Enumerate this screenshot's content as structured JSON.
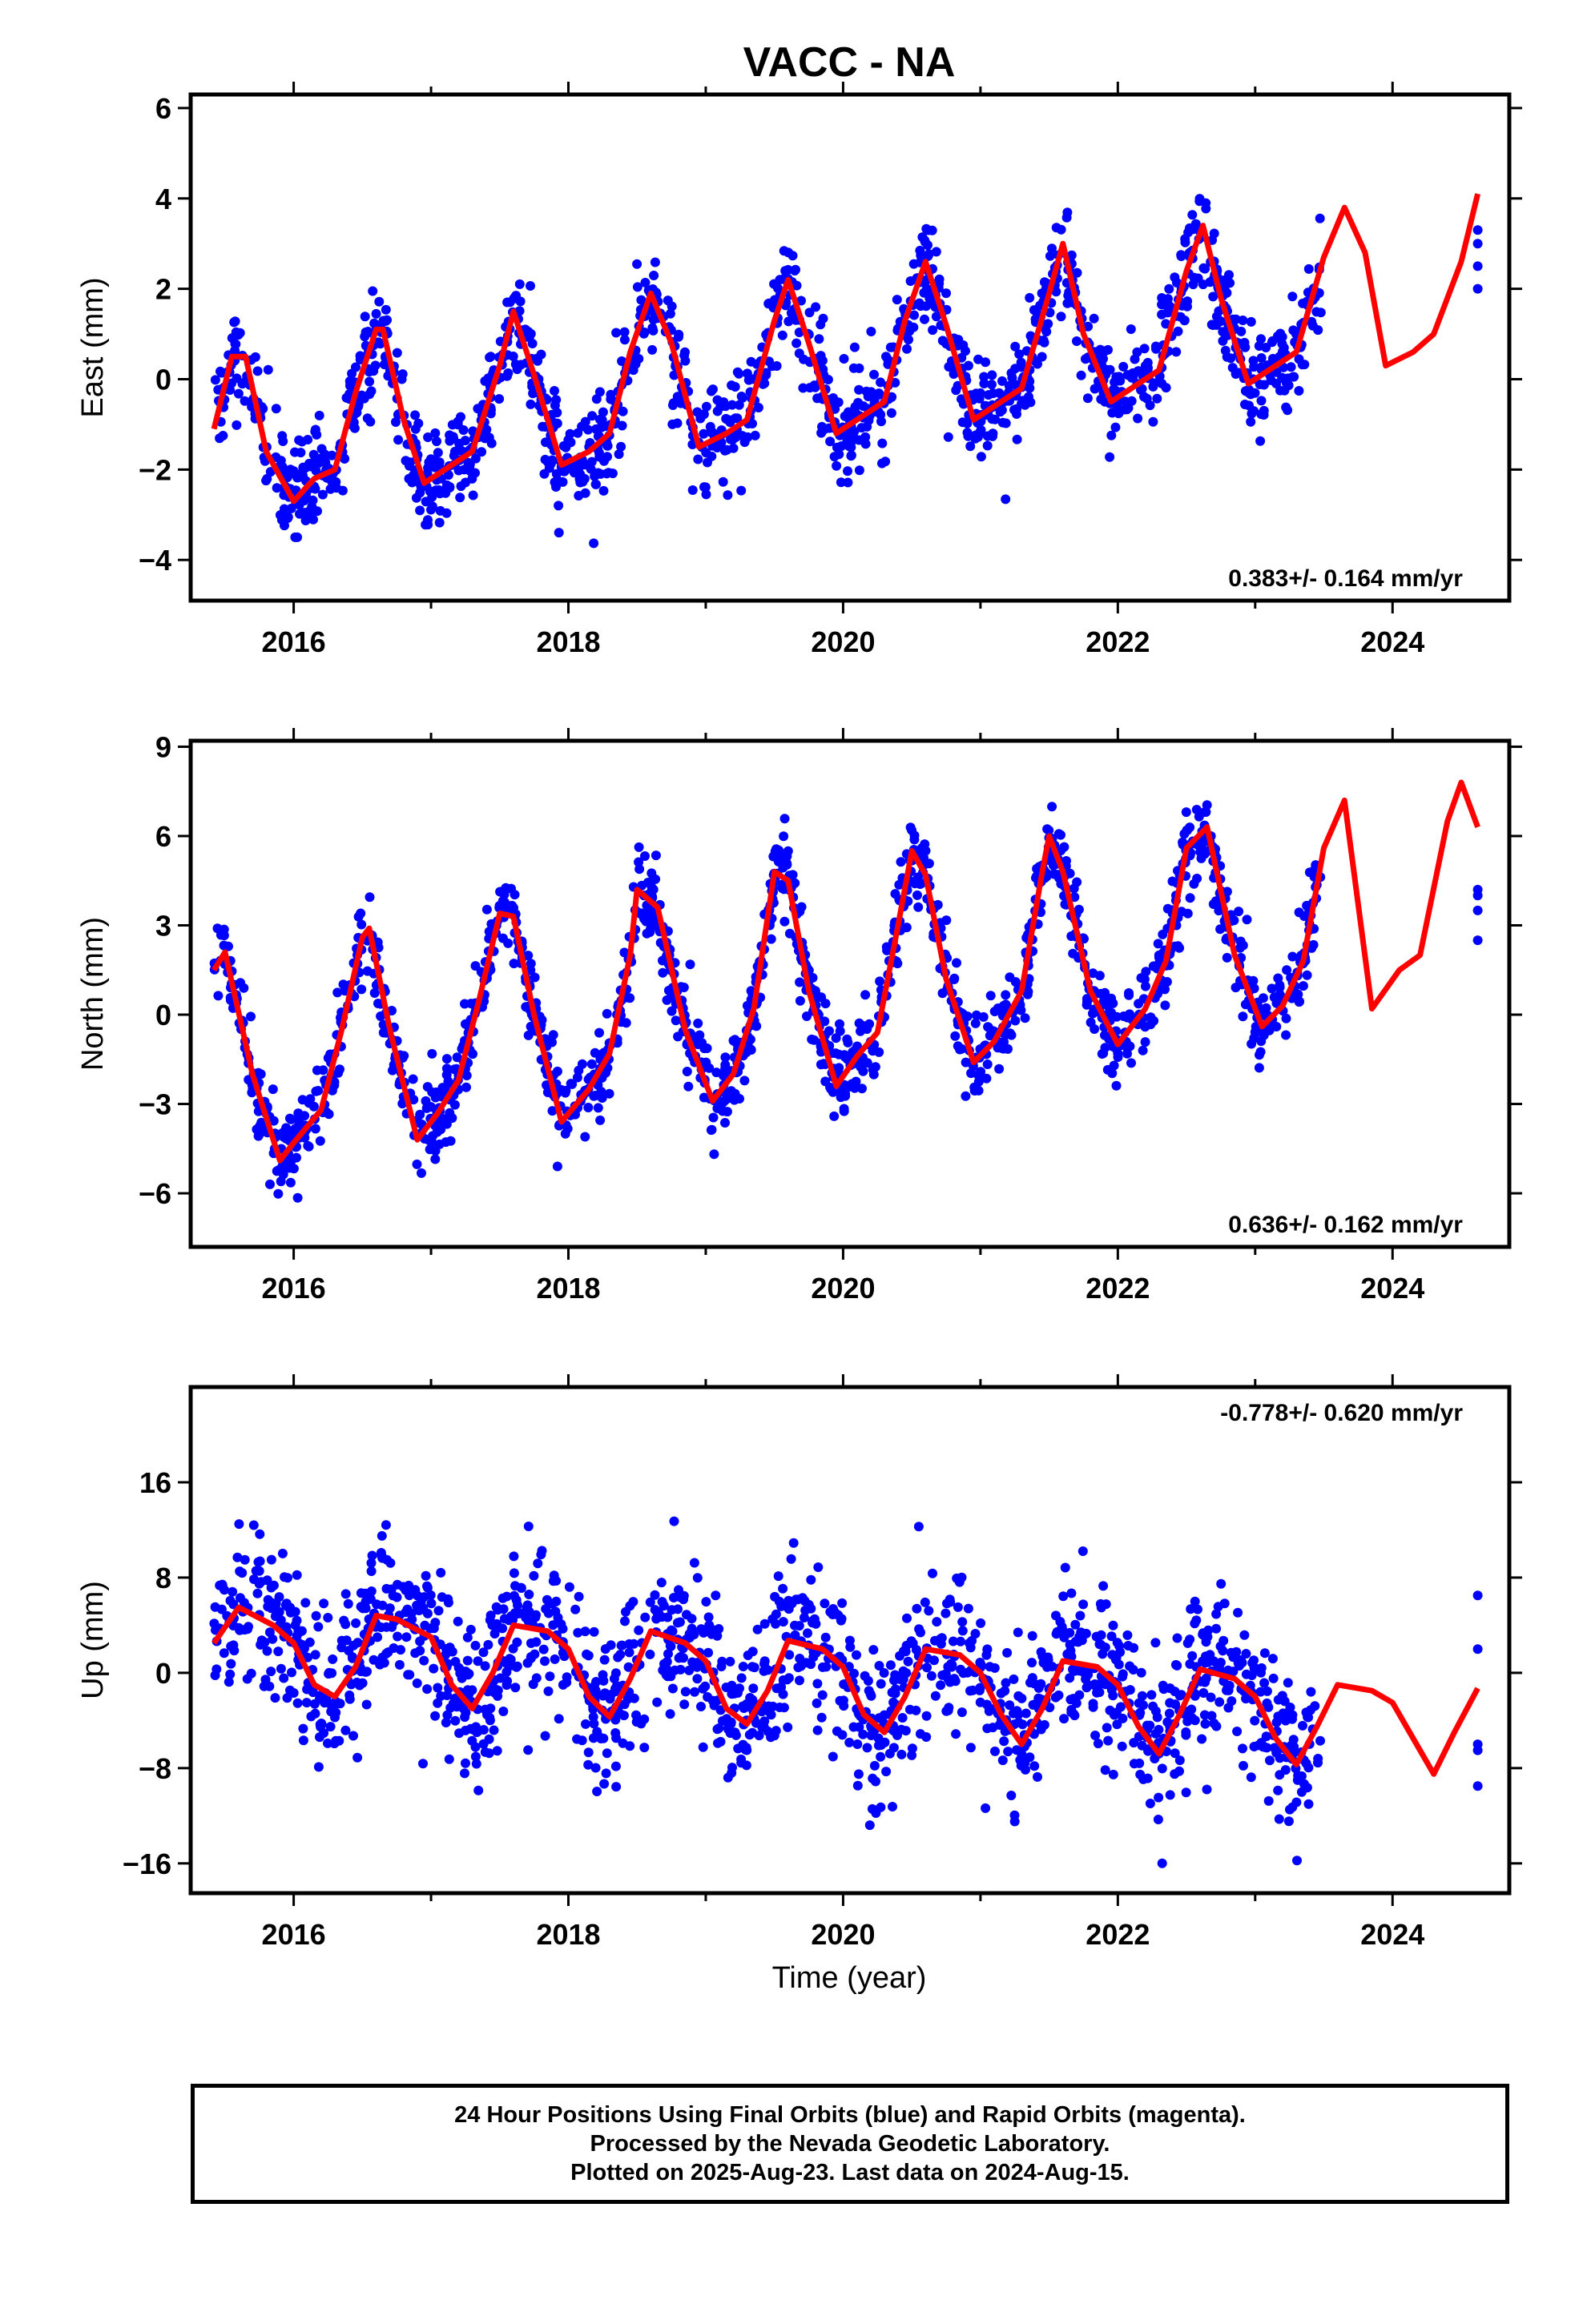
{
  "title": "VACC - NA",
  "xlabel": "Time (year)",
  "footer": {
    "line1": "24 Hour Positions Using Final Orbits (blue) and Rapid Orbits (magenta).",
    "line2": "Processed by the Nevada Geodetic Laboratory.",
    "line3": "Plotted on 2025-Aug-23. Last data on 2024-Aug-15."
  },
  "colors": {
    "data_points": "#0000ff",
    "model_curve": "#ff0000",
    "frame": "#000000"
  },
  "chart_data": [
    {
      "type": "scatter",
      "panel": "east",
      "ylabel": "East (mm)",
      "xlim": [
        2015.25,
        2024.85
      ],
      "ylim": [
        -4.9,
        6.3
      ],
      "xticks": [
        2016,
        2018,
        2020,
        2022,
        2024
      ],
      "yticks": [
        -4,
        -2,
        0,
        2,
        4,
        6
      ],
      "ytick_labels": [
        "−4",
        "−2",
        "0",
        "2",
        "4",
        "6"
      ],
      "rate_text": "0.383+/- 0.164 mm/yr",
      "rate_mm_yr": 0.383,
      "rate_sigma_mm_yr": 0.164,
      "data_span": [
        2015.42,
        2023.48
      ],
      "late_points": {
        "x": [
          2024.62,
          2024.62,
          2024.62,
          2024.62
        ],
        "y": [
          3.0,
          2.5,
          2.0,
          3.3
        ]
      },
      "model": {
        "name": "fit",
        "x": [
          2015.42,
          2015.55,
          2015.65,
          2015.8,
          2016.0,
          2016.15,
          2016.3,
          2016.45,
          2016.6,
          2016.65,
          2016.8,
          2016.95,
          2017.1,
          2017.3,
          2017.5,
          2017.6,
          2017.75,
          2017.95,
          2018.15,
          2018.3,
          2018.45,
          2018.6,
          2018.75,
          2018.95,
          2019.15,
          2019.3,
          2019.5,
          2019.6,
          2019.75,
          2019.95,
          2020.15,
          2020.3,
          2020.45,
          2020.6,
          2020.75,
          2020.95,
          2021.15,
          2021.3,
          2021.5,
          2021.6,
          2021.75,
          2021.95,
          2022.15,
          2022.3,
          2022.5,
          2022.62,
          2022.75,
          2022.95,
          2023.15,
          2023.3,
          2023.5,
          2023.65,
          2023.8,
          2023.95,
          2024.15,
          2024.3,
          2024.5,
          2024.62
        ],
        "y": [
          -1.1,
          0.5,
          0.5,
          -1.6,
          -2.7,
          -2.2,
          -2.0,
          -0.3,
          1.1,
          1.1,
          -0.9,
          -2.3,
          -2.0,
          -1.6,
          0.3,
          1.5,
          0.1,
          -1.9,
          -1.6,
          -1.2,
          0.6,
          1.9,
          0.8,
          -1.5,
          -1.2,
          -0.9,
          1.3,
          2.2,
          0.8,
          -1.2,
          -0.8,
          -0.5,
          1.3,
          2.6,
          1.2,
          -0.9,
          -0.5,
          -0.2,
          1.9,
          3.0,
          1.0,
          -0.5,
          -0.1,
          0.2,
          2.4,
          3.4,
          1.8,
          -0.1,
          0.3,
          0.6,
          2.7,
          3.8,
          2.8,
          0.3,
          0.6,
          1.0,
          2.6,
          4.1
        ]
      },
      "scatter_sd": 0.55
    },
    {
      "type": "scatter",
      "panel": "north",
      "ylabel": "North (mm)",
      "xlim": [
        2015.25,
        2024.85
      ],
      "ylim": [
        -7.8,
        9.2
      ],
      "xticks": [
        2016,
        2018,
        2020,
        2022,
        2024
      ],
      "yticks": [
        -6,
        -3,
        0,
        3,
        6,
        9
      ],
      "ytick_labels": [
        "−6",
        "−3",
        "0",
        "3",
        "6",
        "9"
      ],
      "rate_text": "0.636+/- 0.162 mm/yr",
      "rate_mm_yr": 0.636,
      "rate_sigma_mm_yr": 0.162,
      "data_span": [
        2015.42,
        2023.48
      ],
      "late_points": {
        "x": [
          2024.62,
          2024.62,
          2024.62,
          2024.62
        ],
        "y": [
          4.0,
          3.5,
          2.5,
          4.2
        ]
      },
      "model": {
        "name": "fit",
        "x": [
          2015.42,
          2015.5,
          2015.7,
          2015.9,
          2016.0,
          2016.2,
          2016.35,
          2016.5,
          2016.55,
          2016.7,
          2016.9,
          2017.05,
          2017.2,
          2017.35,
          2017.5,
          2017.6,
          2017.75,
          2017.95,
          2018.15,
          2018.3,
          2018.45,
          2018.5,
          2018.65,
          2018.85,
          2019.05,
          2019.2,
          2019.35,
          2019.5,
          2019.6,
          2019.75,
          2019.95,
          2020.1,
          2020.25,
          2020.4,
          2020.5,
          2020.6,
          2020.75,
          2020.95,
          2021.1,
          2021.3,
          2021.45,
          2021.5,
          2021.6,
          2021.8,
          2022.0,
          2022.2,
          2022.35,
          2022.5,
          2022.65,
          2022.85,
          2023.05,
          2023.2,
          2023.35,
          2023.5,
          2023.65,
          2023.85,
          2024.05,
          2024.2,
          2024.4,
          2024.5,
          2024.62
        ],
        "y": [
          1.5,
          2.1,
          -2.0,
          -4.9,
          -4.3,
          -3.2,
          -0.5,
          2.6,
          2.9,
          -0.5,
          -4.2,
          -3.3,
          -2.2,
          0.5,
          3.4,
          3.3,
          0.0,
          -3.6,
          -2.5,
          -1.3,
          2.0,
          4.2,
          3.6,
          -0.5,
          -2.9,
          -2.0,
          0.2,
          4.8,
          4.5,
          0.8,
          -2.4,
          -1.4,
          -0.6,
          3.0,
          5.5,
          4.7,
          1.2,
          -1.6,
          -0.9,
          0.8,
          4.8,
          6.0,
          4.8,
          0.8,
          -1.0,
          0.2,
          1.8,
          5.6,
          6.3,
          2.0,
          -0.4,
          0.3,
          1.8,
          5.6,
          7.2,
          0.2,
          1.5,
          2.0,
          6.5,
          7.8,
          6.3
        ]
      },
      "scatter_sd": 0.7
    },
    {
      "type": "scatter",
      "panel": "up",
      "ylabel": "Up (mm)",
      "xlim": [
        2015.25,
        2024.85
      ],
      "ylim": [
        -18.5,
        24
      ],
      "xticks": [
        2016,
        2018,
        2020,
        2022,
        2024
      ],
      "yticks": [
        -16,
        -8,
        0,
        8,
        16
      ],
      "ytick_labels": [
        "−16",
        "−8",
        "0",
        "8",
        "16"
      ],
      "rate_text": "-0.778+/- 0.620 mm/yr",
      "rate_mm_yr": -0.778,
      "rate_sigma_mm_yr": 0.62,
      "data_span": [
        2015.42,
        2023.48
      ],
      "late_points": {
        "x": [
          2024.62,
          2024.62,
          2024.62,
          2024.62,
          2024.62
        ],
        "y": [
          6.5,
          2.0,
          -6.0,
          -9.5,
          -6.5
        ]
      },
      "model": {
        "name": "fit",
        "x": [
          2015.42,
          2015.6,
          2015.85,
          2016.0,
          2016.15,
          2016.3,
          2016.45,
          2016.6,
          2016.75,
          2017.0,
          2017.15,
          2017.3,
          2017.45,
          2017.6,
          2017.85,
          2018.0,
          2018.15,
          2018.3,
          2018.45,
          2018.6,
          2018.85,
          2019.0,
          2019.15,
          2019.3,
          2019.45,
          2019.6,
          2019.85,
          2020.0,
          2020.15,
          2020.3,
          2020.45,
          2020.6,
          2020.85,
          2021.0,
          2021.15,
          2021.3,
          2021.45,
          2021.6,
          2021.85,
          2022.0,
          2022.15,
          2022.3,
          2022.45,
          2022.6,
          2022.85,
          2023.0,
          2023.15,
          2023.3,
          2023.45,
          2023.6,
          2023.85,
          2024.0,
          2024.15,
          2024.3,
          2024.45,
          2024.62
        ],
        "y": [
          2.5,
          5.5,
          4.0,
          2.5,
          -1.0,
          -2.0,
          0.5,
          4.8,
          4.5,
          3.0,
          -1.0,
          -3.0,
          0.0,
          4.0,
          3.5,
          2.0,
          -2.0,
          -3.7,
          -0.5,
          3.5,
          2.5,
          1.0,
          -3.0,
          -4.3,
          -1.5,
          2.7,
          2.0,
          0.5,
          -3.5,
          -5.0,
          -2.0,
          2.0,
          1.5,
          0.0,
          -3.5,
          -6.0,
          -3.0,
          1.0,
          0.5,
          -1.0,
          -4.5,
          -6.8,
          -3.5,
          0.3,
          -0.5,
          -2.0,
          -5.5,
          -7.7,
          -4.5,
          -1.0,
          -1.5,
          -2.5,
          -5.5,
          -8.5,
          -5.0,
          -1.3
        ]
      },
      "scatter_sd": 3.2
    }
  ]
}
